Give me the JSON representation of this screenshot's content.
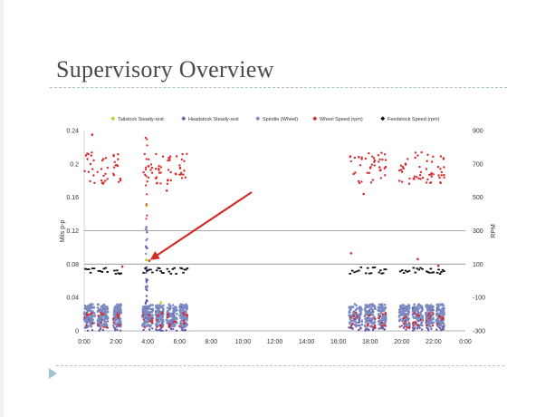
{
  "slide": {
    "title": "Supervisory Overview"
  },
  "colors": {
    "tailstock": "#c4cf2a",
    "headstock": "#6b5aa8",
    "spindle": "#7a8ac2",
    "wheel": "#d42b2b",
    "feed": "#111111",
    "arrow": "#d42b2b",
    "grid": "#8c8c8c"
  },
  "chart_data": {
    "type": "scatter",
    "title": "",
    "xlabel": "",
    "ylabel": "Mils p-p",
    "y2label": "RPM",
    "xlim": [
      "0:00",
      "24:00"
    ],
    "ylim": [
      0,
      0.24
    ],
    "y2lim": [
      -300,
      900
    ],
    "x_ticks": [
      "0:00",
      "2:00",
      "4:00",
      "6:00",
      "8:00",
      "10:00",
      "12:00",
      "14:00",
      "16:00",
      "18:00",
      "20:00",
      "22:00",
      "0:00"
    ],
    "y_ticks": [
      "0",
      "0.04",
      "0.08",
      "0.12",
      "0.16",
      "0.2",
      "0.24"
    ],
    "y2_ticks": [
      "-300",
      "-100",
      "100",
      "300",
      "500",
      "700",
      "900"
    ],
    "gridlines": [
      0.08,
      0.12
    ],
    "legend_position": "top",
    "legend": [
      "Tailstock Steady-rest",
      "Headstock Steady-rest",
      "Spindle (Wheel)",
      "Wheel Speed (rpm)",
      "Feedstock Speed (rpm)"
    ],
    "operating_periods": [
      [
        "0:00",
        "0:40"
      ],
      [
        "0:50",
        "1:30"
      ],
      [
        "1:50",
        "2:20"
      ],
      [
        "3:40",
        "4:20"
      ],
      [
        "4:30",
        "5:00"
      ],
      [
        "5:10",
        "5:50"
      ],
      [
        "6:00",
        "6:30"
      ],
      [
        "16:40",
        "17:30"
      ],
      [
        "17:40",
        "18:20"
      ],
      [
        "18:30",
        "19:00"
      ],
      [
        "19:50",
        "20:30"
      ],
      [
        "20:40",
        "21:20"
      ],
      [
        "21:30",
        "22:00"
      ],
      [
        "22:10",
        "22:40"
      ]
    ],
    "series": [
      {
        "name": "Tailstock Steady-rest",
        "axis": "left",
        "approx_range": [
          0.0,
          0.035
        ],
        "points": [
          [
            "4:50",
            0.034
          ],
          [
            "1:05",
            0.024
          ],
          [
            "18:00",
            0.02
          ],
          [
            "3:55",
            0.15
          ],
          [
            "3:55",
            0.085
          ]
        ]
      },
      {
        "name": "Headstock Steady-rest",
        "axis": "left",
        "approx_range": [
          0.0,
          0.03
        ],
        "spike": {
          "x": "3:55",
          "from": 0.01,
          "to": 0.24
        }
      },
      {
        "name": "Spindle (Wheel)",
        "axis": "left",
        "approx_range": [
          0.005,
          0.032
        ]
      },
      {
        "name": "Wheel Speed (rpm)",
        "axis": "right",
        "approx_range": [
          580,
          770
        ],
        "outliers": [
          [
            0.5,
            875
          ],
          [
            2.4,
            85
          ],
          [
            16.8,
            165
          ],
          [
            18.6,
            680
          ],
          [
            21.0,
            130
          ],
          [
            22.3,
            90
          ],
          [
            4.1,
            120
          ],
          [
            5.2,
            540
          ],
          [
            17.6,
            520
          ]
        ]
      },
      {
        "name": "Feedstock Speed (rpm)",
        "axis": "right",
        "approx_range": [
          40,
          80
        ]
      }
    ],
    "annotation": {
      "type": "arrow",
      "target_x": "3:55",
      "target_y": 0.085
    }
  }
}
